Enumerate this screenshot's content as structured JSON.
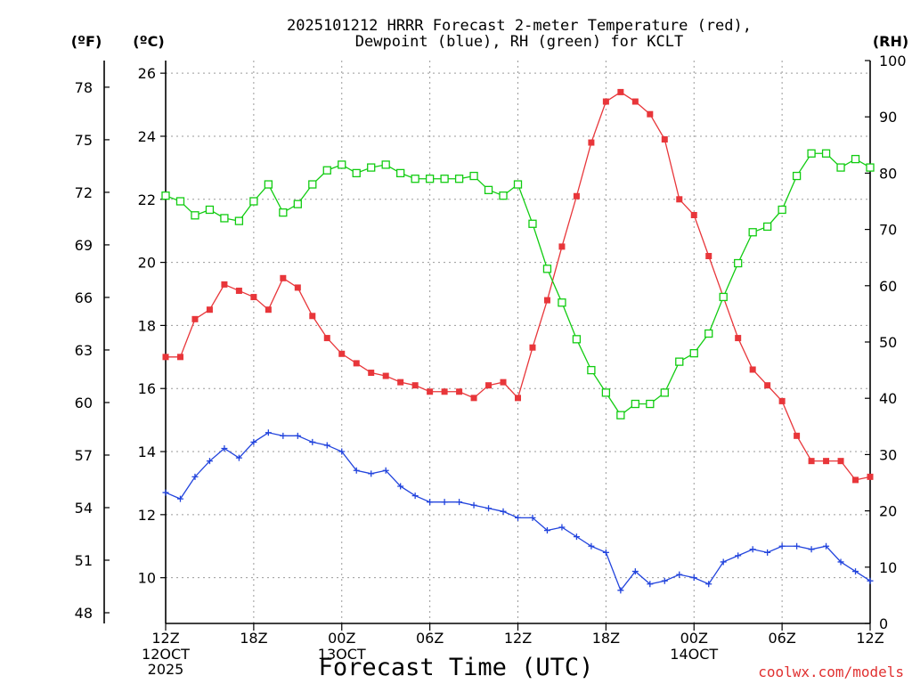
{
  "chart_data": {
    "type": "line",
    "title_lines": [
      "2025101212 HRRR Forecast 2-meter Temperature (red),",
      "Dewpoint (blue), RH (green) for KCLT"
    ],
    "xlabel": "Forecast Time (UTC)",
    "credit": "coolwx.com/models",
    "axes": {
      "left_f": {
        "unit": "(ºF)",
        "ticks": [
          48,
          51,
          54,
          57,
          60,
          63,
          66,
          69,
          72,
          75,
          78
        ]
      },
      "left_c": {
        "unit": "(ºC)",
        "range": [
          8.55,
          26.4
        ],
        "ticks": [
          10,
          12,
          14,
          16,
          18,
          20,
          22,
          24,
          26
        ]
      },
      "right": {
        "unit": "(RH)",
        "range": [
          0,
          100
        ],
        "ticks": [
          0,
          10,
          20,
          30,
          40,
          50,
          60,
          70,
          80,
          90,
          100
        ]
      }
    },
    "x_range": [
      0,
      48
    ],
    "x_ticks": [
      {
        "x": 0,
        "label": "12Z",
        "sub": [
          "12OCT",
          "2025"
        ]
      },
      {
        "x": 6,
        "label": "18Z",
        "sub": []
      },
      {
        "x": 12,
        "label": "00Z",
        "sub": [
          "13OCT"
        ]
      },
      {
        "x": 18,
        "label": "06Z",
        "sub": []
      },
      {
        "x": 24,
        "label": "12Z",
        "sub": []
      },
      {
        "x": 30,
        "label": "18Z",
        "sub": []
      },
      {
        "x": 36,
        "label": "00Z",
        "sub": [
          "14OCT"
        ]
      },
      {
        "x": 42,
        "label": "06Z",
        "sub": []
      },
      {
        "x": 48,
        "label": "12Z",
        "sub": []
      }
    ],
    "grid": true,
    "series": [
      {
        "name": "Temperature",
        "axis": "left_c",
        "color": "#e8363a",
        "marker": "filled-square",
        "values": [
          17.0,
          17.0,
          18.2,
          18.5,
          19.3,
          19.1,
          18.9,
          18.5,
          19.5,
          19.2,
          18.3,
          17.6,
          17.1,
          16.8,
          16.5,
          16.4,
          16.2,
          16.1,
          15.9,
          15.9,
          15.9,
          15.7,
          16.1,
          16.2,
          15.7,
          17.3,
          18.8,
          20.5,
          22.1,
          23.8,
          25.1,
          25.4,
          25.1,
          24.7,
          23.9,
          22.0,
          21.5,
          20.2,
          18.9,
          17.6,
          16.6,
          16.1,
          15.6,
          14.5,
          13.7,
          13.7,
          13.7,
          13.1,
          13.2
        ]
      },
      {
        "name": "Dewpoint",
        "axis": "left_c",
        "color": "#2244dd",
        "marker": "plus",
        "values": [
          12.7,
          12.5,
          13.2,
          13.7,
          14.1,
          13.8,
          14.3,
          14.6,
          14.5,
          14.5,
          14.3,
          14.2,
          14.0,
          13.4,
          13.3,
          13.4,
          12.9,
          12.6,
          12.4,
          12.4,
          12.4,
          12.3,
          12.2,
          12.1,
          11.9,
          11.9,
          11.5,
          11.6,
          11.3,
          11.0,
          10.8,
          9.6,
          10.2,
          9.8,
          9.9,
          10.1,
          10.0,
          9.8,
          10.5,
          10.7,
          10.9,
          10.8,
          11.0,
          11.0,
          10.9,
          11.0,
          10.5,
          10.2,
          9.9
        ]
      },
      {
        "name": "RH",
        "axis": "right",
        "color": "#11cc11",
        "marker": "open-square",
        "values": [
          76,
          75,
          72.5,
          73.5,
          72,
          71.5,
          75,
          78,
          73,
          74.5,
          78,
          80.5,
          81.5,
          80,
          81,
          81.5,
          80,
          79,
          79,
          79,
          79,
          79.5,
          77,
          76,
          78,
          71,
          63,
          57,
          50.5,
          45,
          41,
          37,
          39,
          39,
          41,
          46.5,
          48,
          51.5,
          58,
          64,
          69.5,
          70.5,
          73.5,
          79.5,
          83.5,
          83.5,
          81,
          82.5,
          81
        ]
      }
    ]
  }
}
